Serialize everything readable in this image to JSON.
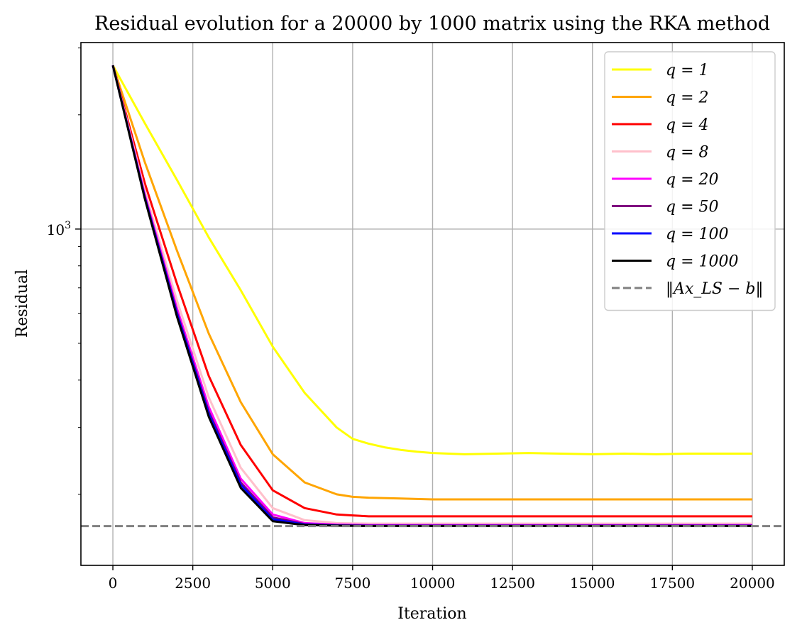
{
  "chart_data": {
    "type": "line",
    "title": "Residual evolution for a 20000 by 1000 matrix using the RKA method",
    "xlabel": "Iteration",
    "ylabel": "Residual",
    "xlim": [
      -1000,
      21000
    ],
    "ylim": [
      130,
      3100
    ],
    "yscale": "log",
    "grid": true,
    "legend_position": "top-right",
    "x_ticks": [
      0,
      2500,
      5000,
      7500,
      10000,
      12500,
      15000,
      17500,
      20000
    ],
    "x_tick_labels": [
      "0",
      "2500",
      "5000",
      "7500",
      "10000",
      "12500",
      "15000",
      "17500",
      "20000"
    ],
    "y_ticks": [
      1000
    ],
    "y_tick_base": "10",
    "y_tick_exp": "3",
    "series": [
      {
        "name": "q = 1",
        "color": "#ffff00",
        "x": [
          0,
          1000,
          2000,
          3000,
          4000,
          5000,
          6000,
          7000,
          7500,
          8000,
          8500,
          9000,
          9500,
          10000,
          10500,
          11000,
          12000,
          13000,
          14000,
          15000,
          16000,
          17000,
          18000,
          19000,
          20000
        ],
        "y": [
          2700,
          1900,
          1350,
          950,
          690,
          490,
          370,
          300,
          280,
          272,
          266,
          262,
          259,
          257,
          256,
          255,
          256,
          257,
          256,
          255,
          256,
          255,
          256,
          256,
          256
        ]
      },
      {
        "name": "q = 2",
        "color": "#ffa500",
        "x": [
          0,
          1000,
          2000,
          3000,
          4000,
          5000,
          6000,
          7000,
          7500,
          8000,
          9000,
          10000,
          11000,
          12000,
          13000,
          14000,
          15000,
          16000,
          17000,
          18000,
          19000,
          20000
        ],
        "y": [
          2700,
          1500,
          880,
          530,
          350,
          255,
          215,
          200,
          197,
          196,
          195,
          194,
          194,
          194,
          194,
          194,
          194,
          194,
          194,
          194,
          194,
          194
        ]
      },
      {
        "name": "q = 4",
        "color": "#ff0000",
        "x": [
          0,
          1000,
          2000,
          3000,
          4000,
          5000,
          6000,
          7000,
          7500,
          8000,
          9000,
          10000,
          12000,
          14000,
          16000,
          18000,
          20000
        ],
        "y": [
          2700,
          1320,
          720,
          410,
          270,
          205,
          184,
          177,
          176,
          175,
          175,
          175,
          175,
          175,
          175,
          175,
          175
        ]
      },
      {
        "name": "q = 8",
        "color": "#ffc0cb",
        "x": [
          0,
          1000,
          2000,
          3000,
          4000,
          5000,
          6000,
          7000,
          8000,
          10000,
          12000,
          15000,
          20000
        ],
        "y": [
          2700,
          1260,
          650,
          360,
          235,
          184,
          171,
          168,
          167.5,
          167.5,
          167.5,
          167.5,
          167.5
        ]
      },
      {
        "name": "q = 20",
        "color": "#ff00ff",
        "x": [
          0,
          1000,
          2000,
          3000,
          4000,
          5000,
          6000,
          7000,
          8000,
          10000,
          15000,
          20000
        ],
        "y": [
          2700,
          1230,
          620,
          340,
          220,
          177,
          168,
          166.5,
          166,
          166,
          166,
          166
        ]
      },
      {
        "name": "q = 50",
        "color": "#800080",
        "x": [
          0,
          1000,
          2000,
          3000,
          4000,
          5000,
          6000,
          7000,
          8000,
          10000,
          15000,
          20000
        ],
        "y": [
          2700,
          1215,
          605,
          330,
          215,
          174,
          167,
          165.8,
          165.5,
          165.5,
          165.5,
          165.5
        ]
      },
      {
        "name": "q = 100",
        "color": "#0000ff",
        "x": [
          0,
          1000,
          2000,
          3000,
          4000,
          5000,
          6000,
          7000,
          8000,
          10000,
          15000,
          20000
        ],
        "y": [
          2700,
          1210,
          600,
          326,
          212,
          172,
          166.5,
          165.6,
          165.3,
          165.3,
          165.3,
          165.3
        ]
      },
      {
        "name": "q = 1000",
        "color": "#000000",
        "x": [
          0,
          1000,
          2000,
          3000,
          4000,
          5000,
          6000,
          7000,
          8000,
          10000,
          15000,
          20000
        ],
        "y": [
          2700,
          1200,
          590,
          320,
          208,
          170,
          166,
          165.4,
          165.1,
          165.1,
          165.1,
          165.1
        ]
      }
    ],
    "reference_line": {
      "name": "‖Ax_LS − b‖",
      "color": "#808080",
      "y": 165,
      "style": "dashed"
    }
  }
}
